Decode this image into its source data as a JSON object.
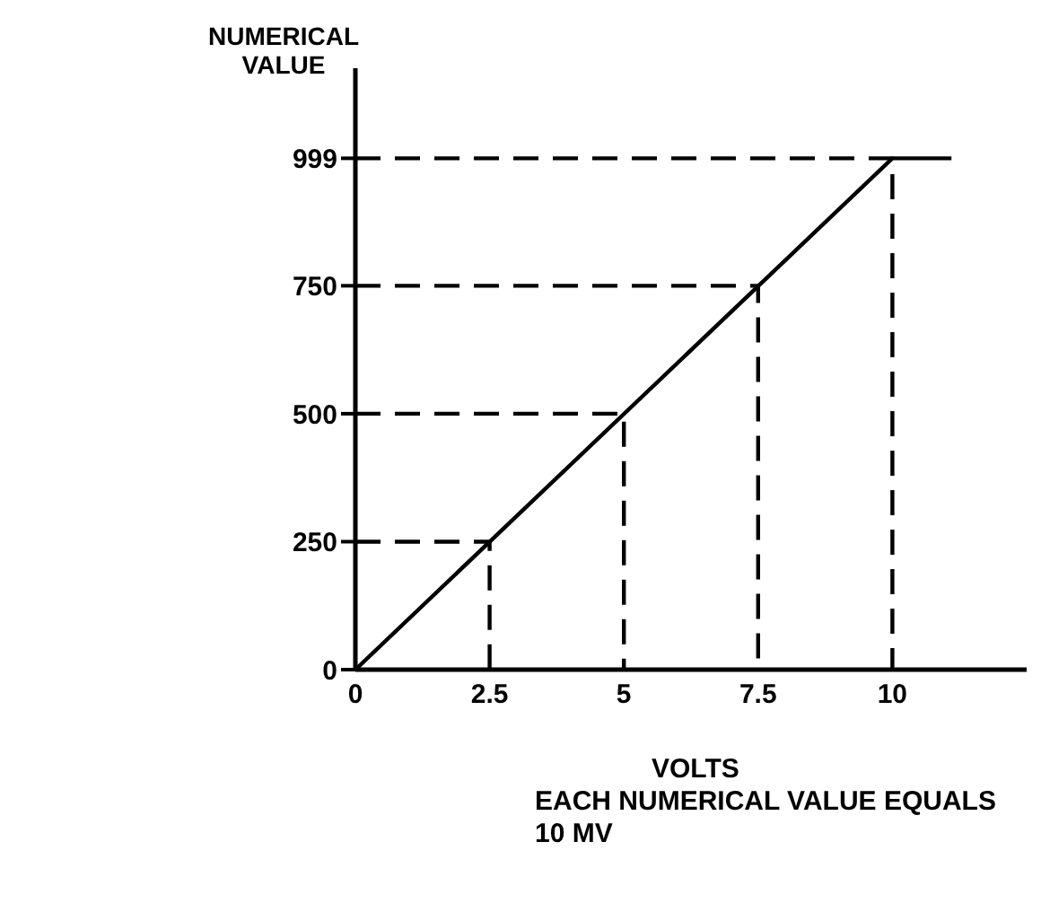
{
  "chart_data": {
    "type": "line",
    "ylabel": "NUMERICAL\nVALUE",
    "xlabel": "VOLTS",
    "annotations": [
      "EACH NUMERICAL VALUE EQUALS\n10 MV"
    ],
    "xlim": [
      0,
      12.5
    ],
    "xticks": [
      0,
      2.5,
      5,
      7.5,
      10
    ],
    "ylim": [
      0,
      1175
    ],
    "yticks": [
      0,
      250,
      500,
      750,
      999
    ],
    "marker": "none",
    "series": [
      {
        "color": "#000000",
        "line_style": "solid",
        "x": [
          0,
          10,
          11.1
        ],
        "values": [
          0,
          999,
          999
        ]
      },
      {
        "color": "#000000",
        "line_style": "dashed",
        "x": [
          0,
          2.5,
          2.5
        ],
        "values": [
          250,
          250,
          0
        ]
      },
      {
        "color": "#000000",
        "line_style": "dashed",
        "x": [
          0,
          5,
          5
        ],
        "values": [
          500,
          500,
          0
        ]
      },
      {
        "color": "#000000",
        "line_style": "dashed",
        "x": [
          0,
          7.5,
          7.5
        ],
        "values": [
          750,
          750,
          0
        ]
      },
      {
        "color": "#000000",
        "line_style": "dashed",
        "x": [
          0,
          10,
          10
        ],
        "values": [
          999,
          999,
          0
        ]
      }
    ]
  }
}
